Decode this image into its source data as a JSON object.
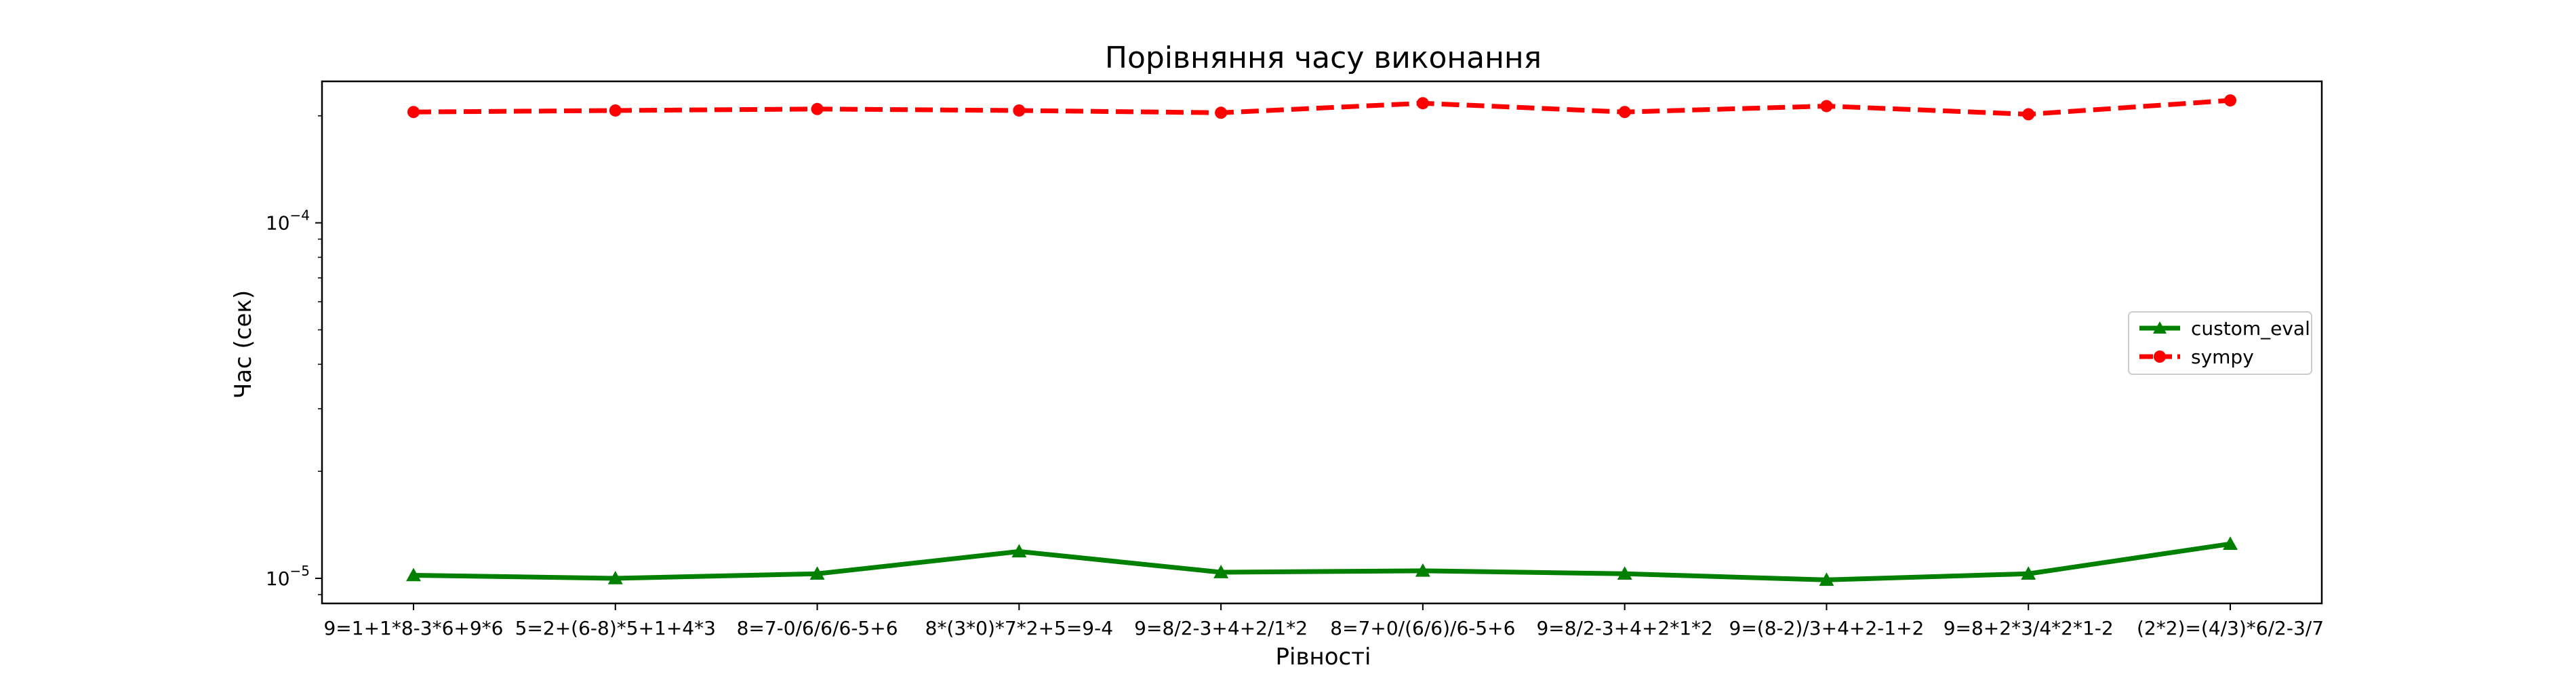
{
  "chart_data": {
    "type": "line",
    "title": "Порівняння часу виконання",
    "xlabel": "Рівності",
    "ylabel": "Час (сек)",
    "yscale": "log",
    "ylim": [
      8.5e-06,
      0.00025
    ],
    "grid": false,
    "legend": "center-right",
    "y_ticks": [
      {
        "value": 1e-05,
        "label": "10",
        "exp": "−5"
      },
      {
        "value": 0.0001,
        "label": "10",
        "exp": "−4"
      }
    ],
    "categories": [
      "9=1+1*8-3*6+9*6",
      "5=2+(6-8)*5+1+4*3",
      "8=7-0/6/6/6-5+6",
      "8*(3*0)*7*2+5=9-4",
      "9=8/2-3+4+2/1*2",
      "8=7+0/(6/6)/6-5+6",
      "9=8/2-3+4+2*1*2",
      "9=(8-2)/3+4+2-1+2",
      "9=8+2*3/4*2*1-2",
      "(2*2)=(4/3)*6/2-3/7"
    ],
    "series": [
      {
        "name": "custom_eval",
        "color": "#008000",
        "marker": "triangle",
        "dash": "solid",
        "values": [
          1.02e-05,
          1e-05,
          1.03e-05,
          1.19e-05,
          1.04e-05,
          1.05e-05,
          1.03e-05,
          9.9e-06,
          1.03e-05,
          1.25e-05
        ]
      },
      {
        "name": "sympy",
        "color": "#ff0000",
        "marker": "circle",
        "dash": "dashed",
        "values": [
          0.000205,
          0.000207,
          0.000209,
          0.000207,
          0.000204,
          0.000217,
          0.000205,
          0.000213,
          0.000202,
          0.000221
        ]
      }
    ]
  }
}
